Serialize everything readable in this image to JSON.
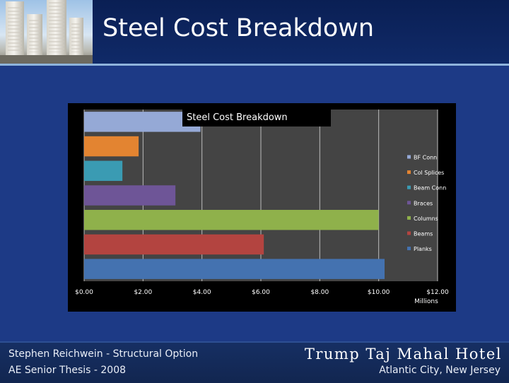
{
  "slide": {
    "title": "Steel Cost Breakdown"
  },
  "footer": {
    "author": "Stephen Reichwein - Structural Option",
    "course": "AE Senior Thesis - 2008",
    "project": "Trump Taj Mahal Hotel",
    "location": "Atlantic City, New Jersey"
  },
  "chart_data": {
    "type": "bar",
    "orientation": "horizontal",
    "title": "Steel Cost Breakdown",
    "categories": [
      "Planks",
      "Beams",
      "Columns",
      "Braces",
      "Beam Conn",
      "Col Splices",
      "BF Conn"
    ],
    "values": [
      10.2,
      6.1,
      10.0,
      3.1,
      1.3,
      1.85,
      3.95
    ],
    "colors": [
      "#4472b0",
      "#b34440",
      "#8fb14b",
      "#6e5597",
      "#3a9bb3",
      "#e38431",
      "#95a9d6"
    ],
    "xlim": [
      0,
      12
    ],
    "xticks": [
      "$0.00",
      "$2.00",
      "$4.00",
      "$6.00",
      "$8.00",
      "$10.00",
      "$12.00"
    ],
    "xunit": "Millions",
    "legend_order": [
      "BF Conn",
      "Col Splices",
      "Beam Conn",
      "Braces",
      "Columns",
      "Beams",
      "Planks"
    ],
    "legend_position": "right",
    "grid": true
  }
}
